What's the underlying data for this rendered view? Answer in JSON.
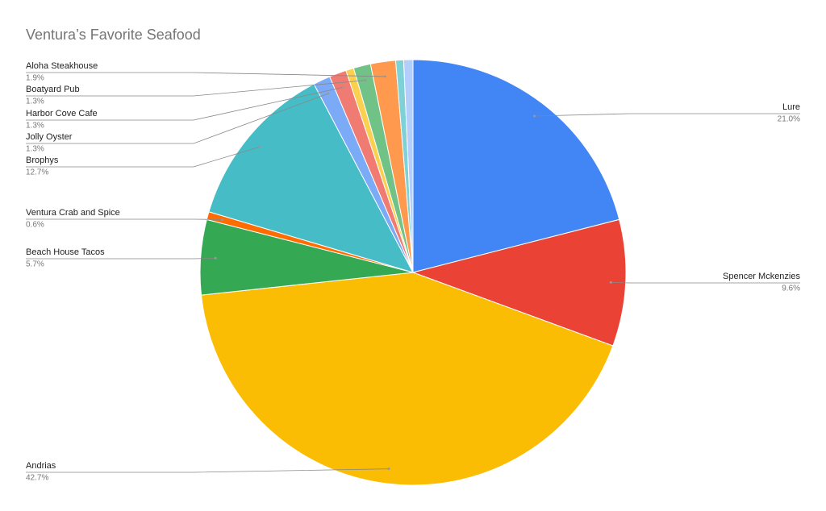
{
  "chart_data": {
    "type": "pie",
    "title": "Ventura’s Favorite Seafood",
    "categories": [
      "Lure",
      "Spencer Mckenzies",
      "Andrias",
      "Beach House Tacos",
      "Ventura Crab and Spice",
      "Brophys",
      "Jolly Oyster",
      "Harbor Cove Cafe",
      null,
      "Boatyard Pub",
      "Aloha Steakhouse",
      null,
      null
    ],
    "values": [
      21.0,
      9.6,
      42.7,
      5.7,
      0.6,
      12.7,
      1.3,
      1.3,
      0.6,
      1.3,
      1.9,
      0.6,
      0.7
    ],
    "value_labels": [
      "21.0%",
      "9.6%",
      "42.7%",
      "5.7%",
      "0.6%",
      "12.7%",
      "1.3%",
      "1.3%",
      null,
      "1.3%",
      "1.9%",
      null,
      null
    ],
    "colors": [
      "#4285f4",
      "#ea4335",
      "#fbbc04",
      "#34a853",
      "#ff6d01",
      "#46bdc6",
      "#7baaf7",
      "#f07b72",
      "#fcd04f",
      "#71c287",
      "#ff994d",
      "#7ed1d7",
      "#b3cefb"
    ]
  }
}
